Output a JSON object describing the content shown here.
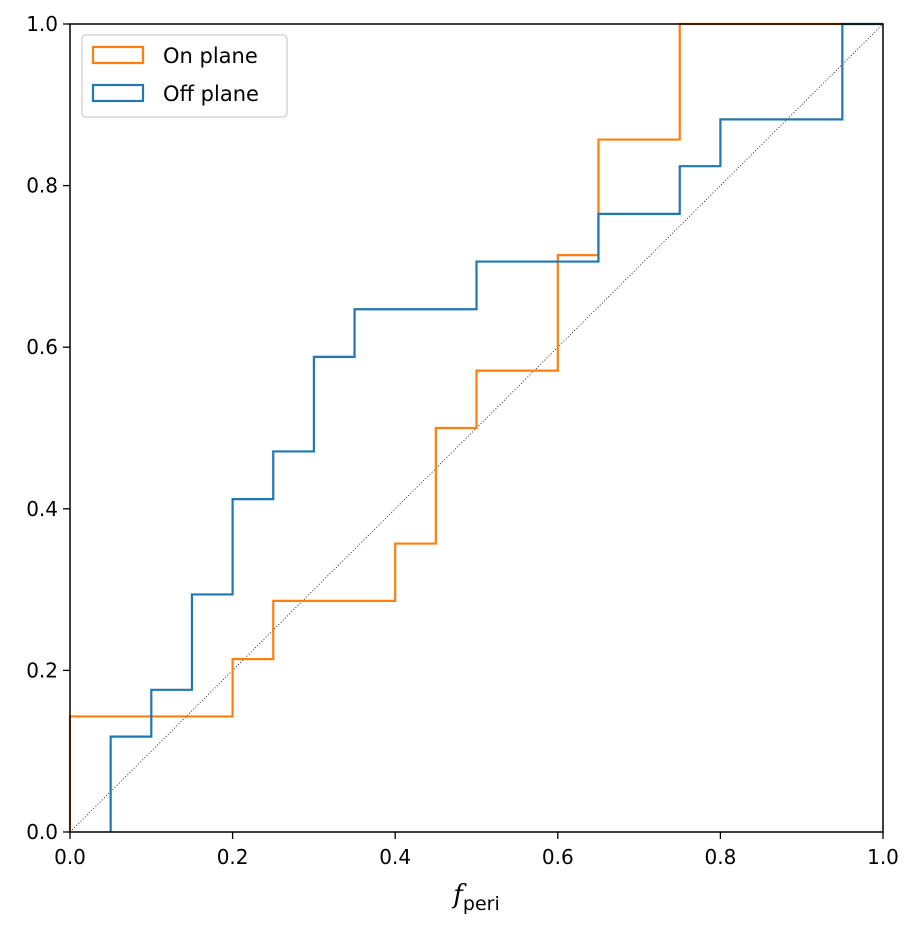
{
  "chart_data": {
    "type": "line",
    "drawstyle": "steps-post",
    "title": "",
    "xlabel": "f",
    "xlabel_subscript": "peri",
    "ylabel": "",
    "xlim": [
      0.0,
      1.0
    ],
    "ylim": [
      0.0,
      1.0
    ],
    "xticks": [
      "0.0",
      "0.2",
      "0.4",
      "0.6",
      "0.8",
      "1.0"
    ],
    "yticks": [
      "0.0",
      "0.2",
      "0.4",
      "0.6",
      "0.8",
      "1.0"
    ],
    "grid": false,
    "legend_position": "upper-left",
    "reference_line": {
      "name": "y = x",
      "color": "#000000",
      "style": "dotted",
      "points": [
        [
          0,
          0
        ],
        [
          1,
          1
        ]
      ]
    },
    "series": [
      {
        "name": "On plane",
        "color": "#ff7f0e",
        "x": [
          0.0,
          0.0,
          0.2,
          0.25,
          0.4,
          0.45,
          0.5,
          0.6,
          0.65,
          0.75,
          1.0
        ],
        "y": [
          0.0,
          0.143,
          0.214,
          0.286,
          0.357,
          0.5,
          0.571,
          0.714,
          0.857,
          1.0,
          1.0
        ]
      },
      {
        "name": "Off plane",
        "color": "#1f77b4",
        "x": [
          0.05,
          0.05,
          0.1,
          0.15,
          0.2,
          0.25,
          0.3,
          0.35,
          0.5,
          0.65,
          0.75,
          0.8,
          0.95,
          1.0
        ],
        "y": [
          0.0,
          0.118,
          0.176,
          0.294,
          0.412,
          0.471,
          0.588,
          0.647,
          0.706,
          0.765,
          0.824,
          0.882,
          1.0,
          1.0
        ]
      }
    ]
  }
}
